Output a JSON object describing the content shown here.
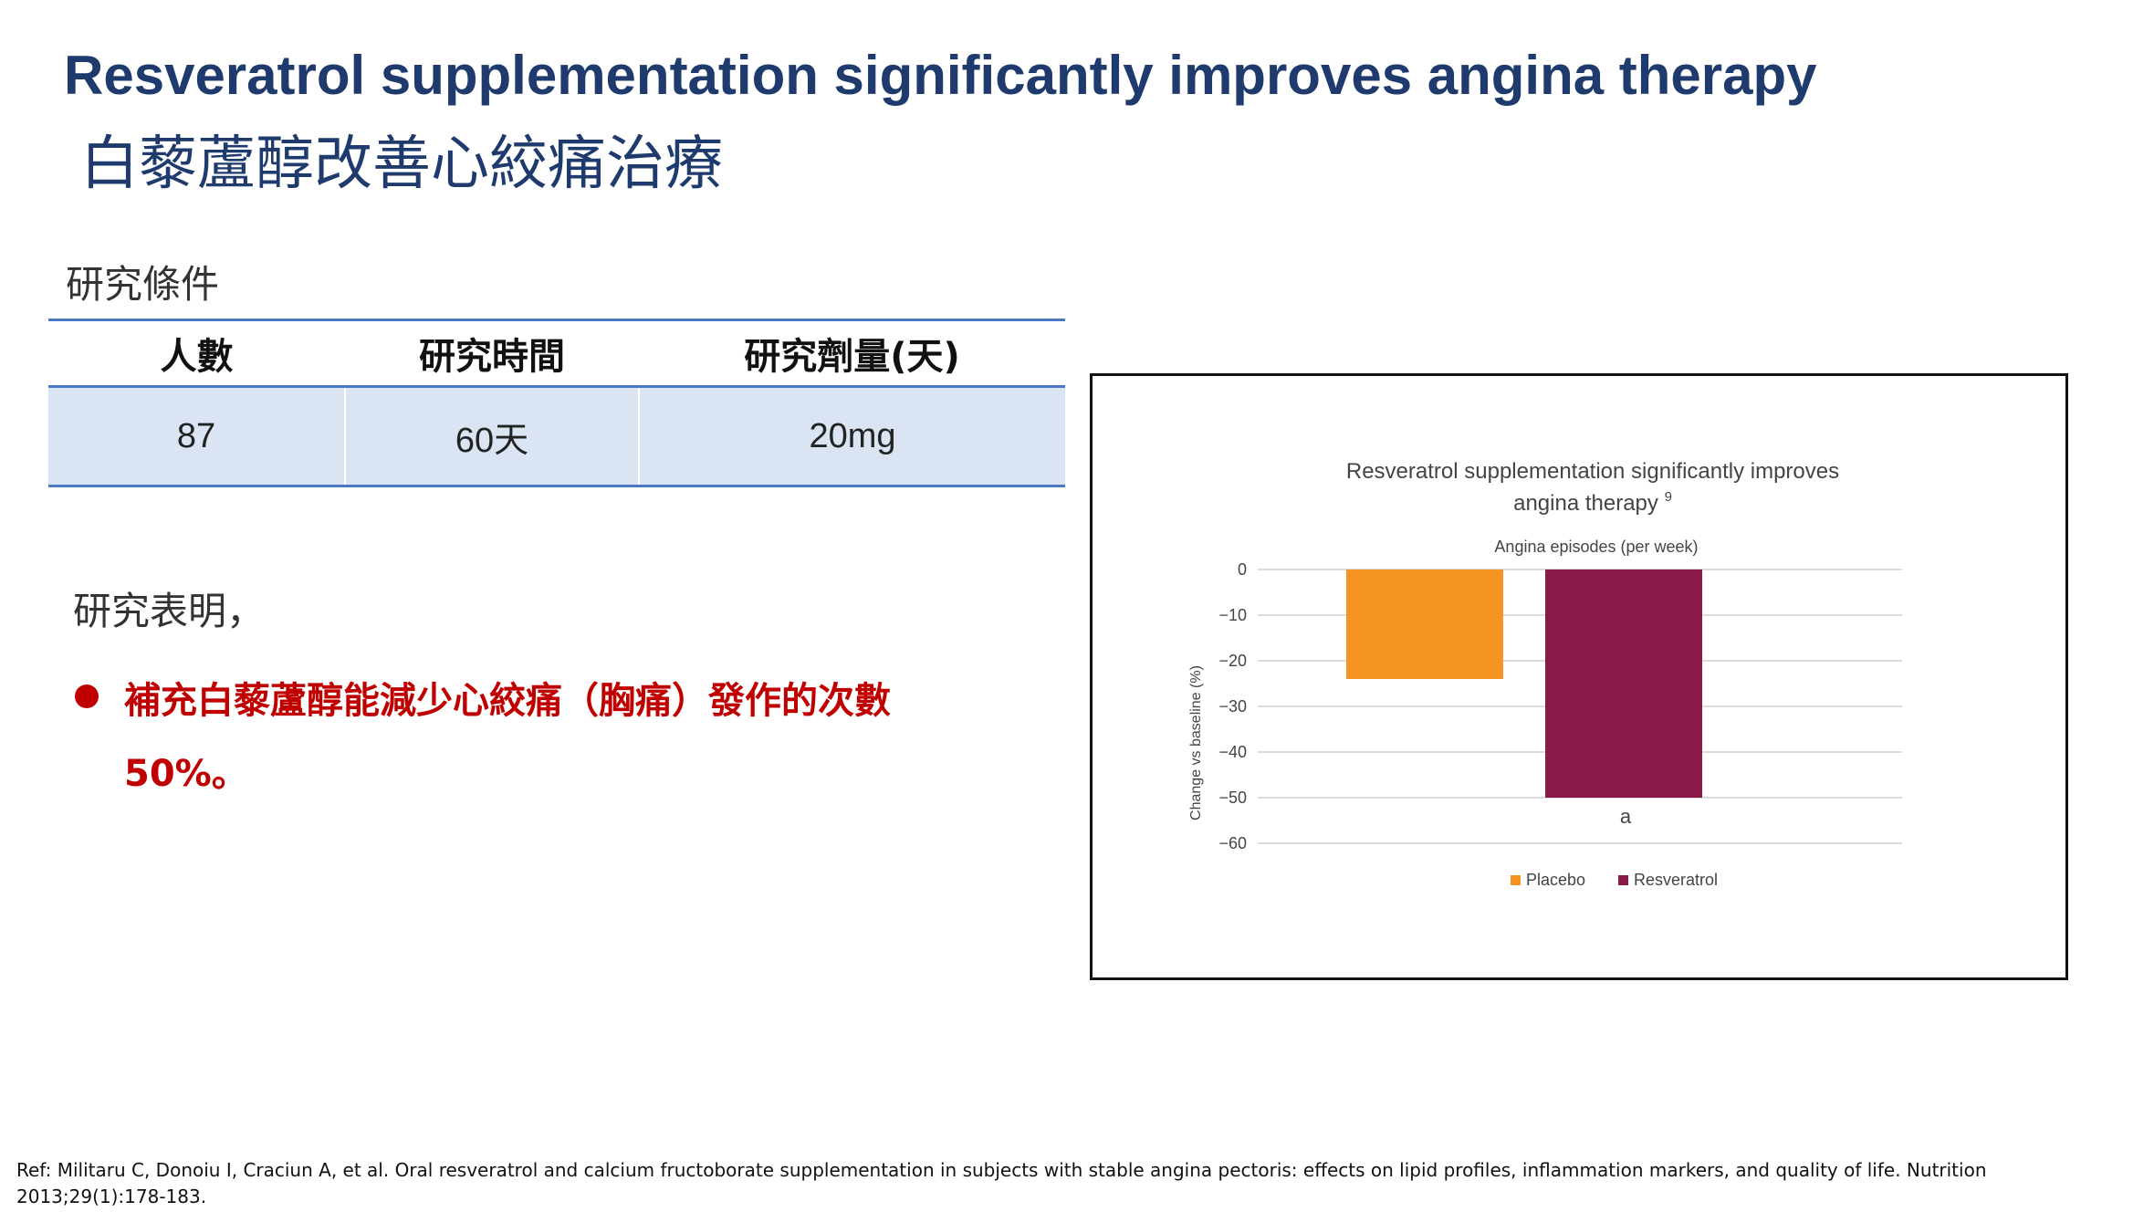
{
  "title": {
    "english": "Resveratrol supplementation significantly improves angina therapy",
    "chinese": "白藜蘆醇改善心絞痛治療"
  },
  "study_conditions": {
    "label": "研究條件",
    "headers": [
      "人數",
      "研究時間",
      "研究劑量(天)"
    ],
    "values": [
      "87",
      "60天",
      "20mg"
    ]
  },
  "findings": {
    "label": "研究表明，",
    "items": [
      "補充白藜蘆醇能減少心絞痛（胸痛）發作的次數 50%。"
    ]
  },
  "chart_data": {
    "type": "bar",
    "title": "Resveratrol supplementation significantly improves angina therapy",
    "title_superscript": "9",
    "subtitle": "Angina episodes (per week)",
    "ylabel": "Change vs baseline (%)",
    "xlabel": "",
    "ylim": [
      -60,
      0
    ],
    "yticks": [
      0,
      -10,
      -20,
      -30,
      -40,
      -50,
      -60
    ],
    "grid": true,
    "legend_position": "bottom",
    "series": [
      {
        "name": "Placebo",
        "values": [
          -24
        ],
        "color": "#f39423"
      },
      {
        "name": "Resveratrol",
        "values": [
          -50
        ],
        "color": "#8b1a4a",
        "annotation": "a"
      }
    ]
  },
  "reference": "Ref: Militaru C, Donoiu I, Craciun A, et al. Oral resveratrol and calcium fructoborate supplementation in subjects with stable angina pectoris: effects on lipid profiles, inflammation markers, and quality of life. Nutrition 2013;29(1):178-183."
}
